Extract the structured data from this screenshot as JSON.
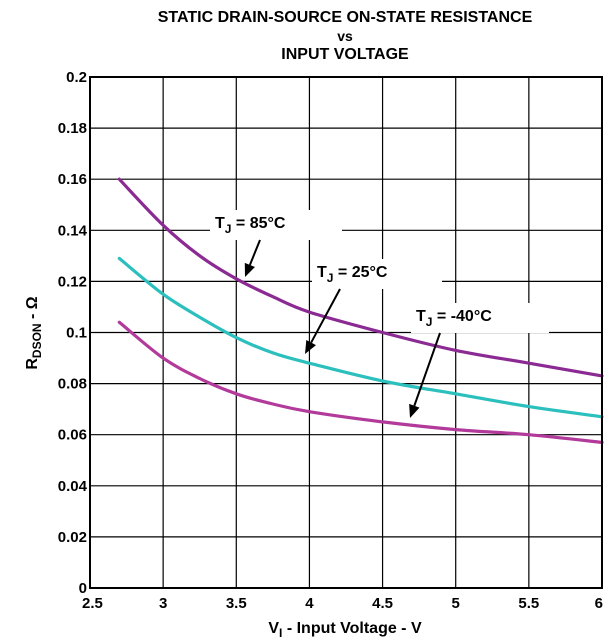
{
  "chart_data": {
    "type": "line",
    "title_lines": [
      "STATIC DRAIN-SOURCE ON-STATE RESISTANCE",
      "vs",
      "INPUT VOLTAGE"
    ],
    "xlabel": {
      "main": "V",
      "sub": "I",
      "rest": " - Input Voltage - V"
    },
    "ylabel": {
      "main": "R",
      "sub": "DSON",
      "rest": " - Ω"
    },
    "xlim": [
      2.5,
      6
    ],
    "ylim": [
      0,
      0.2
    ],
    "x_ticks": [
      "2.5",
      "3",
      "3.5",
      "4",
      "4.5",
      "5",
      "5.5",
      "6"
    ],
    "y_ticks": [
      "0",
      "0.02",
      "0.04",
      "0.06",
      "0.08",
      "0.1",
      "0.12",
      "0.14",
      "0.16",
      "0.18",
      "0.2"
    ],
    "grid": true,
    "series": [
      {
        "label_main": "T",
        "label_sub": "J",
        "label_rest": " = 85°C",
        "color": "#8B2A93",
        "x": [
          2.7,
          3.0,
          3.25,
          3.5,
          3.75,
          4.0,
          4.5,
          5.0,
          5.5,
          6.0
        ],
        "y": [
          0.16,
          0.142,
          0.13,
          0.121,
          0.114,
          0.108,
          0.1,
          0.093,
          0.088,
          0.083
        ]
      },
      {
        "label_main": "T",
        "label_sub": "J",
        "label_rest": " = 25°C",
        "color": "#2BBFBD",
        "x": [
          2.7,
          3.0,
          3.25,
          3.5,
          3.75,
          4.0,
          4.5,
          5.0,
          5.5,
          6.0
        ],
        "y": [
          0.129,
          0.115,
          0.106,
          0.098,
          0.092,
          0.088,
          0.081,
          0.076,
          0.071,
          0.067
        ]
      },
      {
        "label_main": "T",
        "label_sub": "J",
        "label_rest": " = -40°C",
        "color": "#B23A9A",
        "x": [
          2.7,
          3.0,
          3.25,
          3.5,
          3.75,
          4.0,
          4.5,
          5.0,
          5.5,
          6.0
        ],
        "y": [
          0.104,
          0.09,
          0.082,
          0.076,
          0.072,
          0.069,
          0.065,
          0.062,
          0.06,
          0.057
        ]
      }
    ]
  }
}
